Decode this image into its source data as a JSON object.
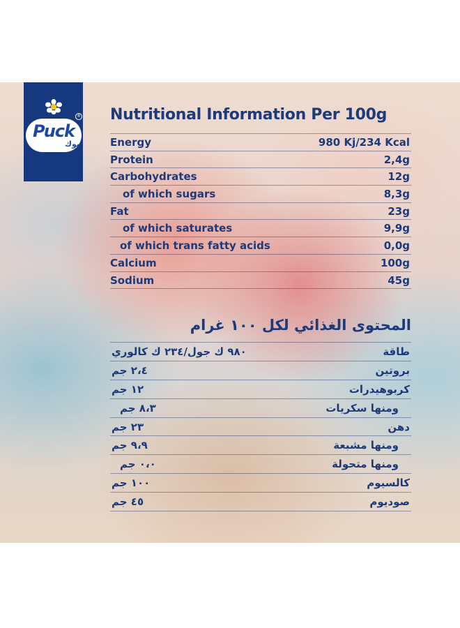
{
  "brand": {
    "name": "Puck",
    "name_ar": "بوك",
    "registered": "®"
  },
  "colors": {
    "navy": "#16387f",
    "text": "#1d3a7a",
    "logo_blue": "#1b4aa0"
  },
  "english": {
    "title": "Nutritional Information Per 100g",
    "rows": [
      {
        "label": "Energy",
        "value": "980 Kj/234 Kcal"
      },
      {
        "label": "Protein",
        "value": "2,4g"
      },
      {
        "label": "Carbohydrates",
        "value": "12g"
      },
      {
        "label": "of which sugars",
        "value": "8,3g"
      },
      {
        "label": "Fat",
        "value": "23g"
      },
      {
        "label": "of which saturates",
        "value": "9,9g"
      },
      {
        "label": "of which trans fatty acids",
        "value": "0,0g"
      },
      {
        "label": "Calcium",
        "value": "100g"
      },
      {
        "label": "Sodium",
        "value": "45g"
      }
    ]
  },
  "arabic": {
    "title": "المحتوى الغذائي لكل ١٠٠ غرام",
    "rows": [
      {
        "label": "طاقة",
        "value": "٩٨٠ ك جول/٢٣٤ ك كالوري"
      },
      {
        "label": "بروتين",
        "value": "٢،٤ جم"
      },
      {
        "label": "كربوهيدرات",
        "value": "١٢ جم"
      },
      {
        "label": "ومنها سكريات",
        "value": "٨،٣ جم"
      },
      {
        "label": "دهن",
        "value": "٢٣ جم"
      },
      {
        "label": "ومنها مشبعة",
        "value": "٩،٩ جم"
      },
      {
        "label": "ومنها متحولة",
        "value": "٠،٠ جم"
      },
      {
        "label": "كالسيوم",
        "value": "١٠٠ جم"
      },
      {
        "label": "صوديوم",
        "value": "٤٥ جم"
      }
    ]
  }
}
